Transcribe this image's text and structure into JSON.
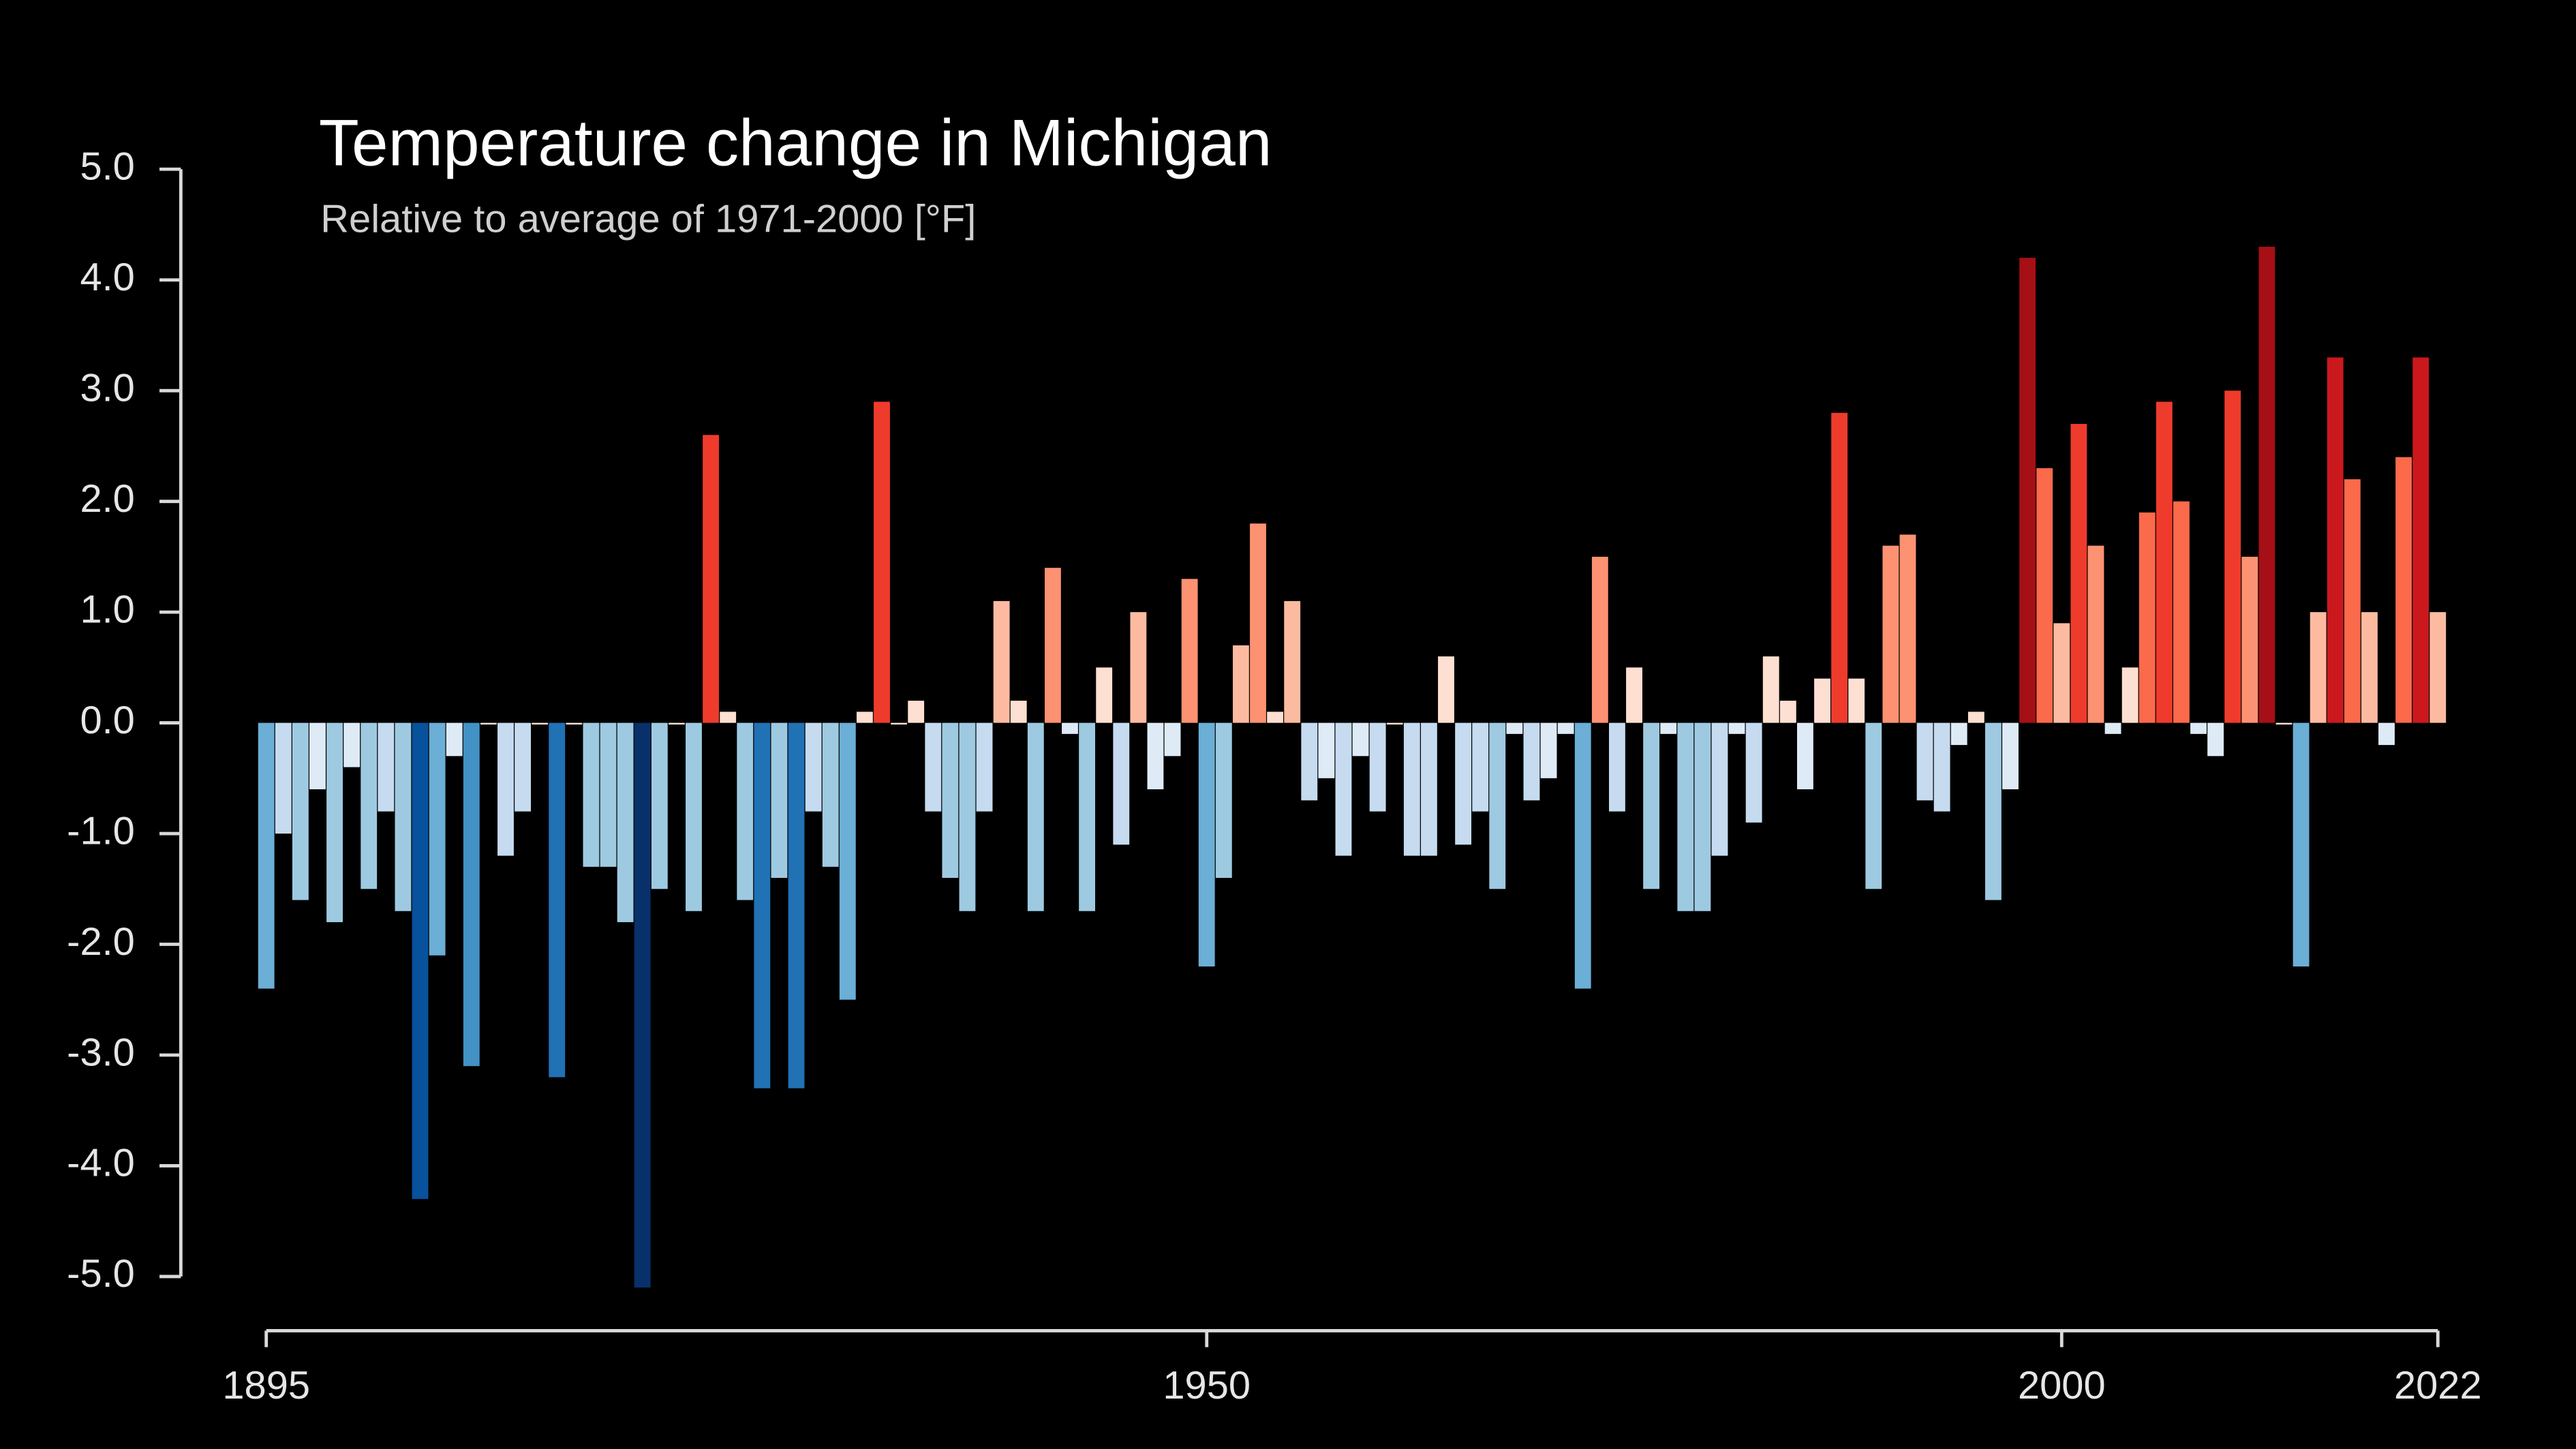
{
  "chart_data": {
    "type": "bar",
    "title": "Temperature change in Michigan",
    "subtitle": "Relative to average of 1971-2000  [°F]",
    "x": [
      1895,
      1896,
      1897,
      1898,
      1899,
      1900,
      1901,
      1902,
      1903,
      1904,
      1905,
      1906,
      1907,
      1908,
      1909,
      1910,
      1911,
      1912,
      1913,
      1914,
      1915,
      1916,
      1917,
      1918,
      1919,
      1920,
      1921,
      1922,
      1923,
      1924,
      1925,
      1926,
      1927,
      1928,
      1929,
      1930,
      1931,
      1932,
      1933,
      1934,
      1935,
      1936,
      1937,
      1938,
      1939,
      1940,
      1941,
      1942,
      1943,
      1944,
      1945,
      1946,
      1947,
      1948,
      1949,
      1950,
      1951,
      1952,
      1953,
      1954,
      1955,
      1956,
      1957,
      1958,
      1959,
      1960,
      1961,
      1962,
      1963,
      1964,
      1965,
      1966,
      1967,
      1968,
      1969,
      1970,
      1971,
      1972,
      1973,
      1974,
      1975,
      1976,
      1977,
      1978,
      1979,
      1980,
      1981,
      1982,
      1983,
      1984,
      1985,
      1986,
      1987,
      1988,
      1989,
      1990,
      1991,
      1992,
      1993,
      1994,
      1995,
      1996,
      1997,
      1998,
      1999,
      2000,
      2001,
      2002,
      2003,
      2004,
      2005,
      2006,
      2007,
      2008,
      2009,
      2010,
      2011,
      2012,
      2013,
      2014,
      2015,
      2016,
      2017,
      2018,
      2019,
      2020,
      2021,
      2022
    ],
    "values": [
      -2.4,
      -1.0,
      -1.6,
      -0.6,
      -1.8,
      -0.4,
      -1.5,
      -0.8,
      -1.7,
      -4.3,
      -2.1,
      -0.3,
      -3.1,
      0.0,
      -1.2,
      -0.8,
      0.0,
      -3.2,
      0.0,
      -1.3,
      -1.3,
      -1.8,
      -5.1,
      -1.5,
      0.0,
      -1.7,
      2.6,
      0.1,
      -1.6,
      -3.3,
      -1.4,
      -3.3,
      -0.8,
      -1.3,
      -2.5,
      0.1,
      2.9,
      0.0,
      0.2,
      -0.8,
      -1.4,
      -1.7,
      -0.8,
      1.1,
      0.2,
      -1.7,
      1.4,
      -0.1,
      -1.7,
      0.5,
      -1.1,
      1.0,
      -0.6,
      -0.3,
      1.3,
      -2.2,
      -1.4,
      0.7,
      1.8,
      0.1,
      1.1,
      -0.7,
      -0.5,
      -1.2,
      -0.3,
      -0.8,
      0.0,
      -1.2,
      -1.2,
      0.6,
      -1.1,
      -0.8,
      -1.5,
      -0.1,
      -0.7,
      -0.5,
      -0.1,
      -2.4,
      1.5,
      -0.8,
      0.5,
      -1.5,
      -0.1,
      -1.7,
      -1.7,
      -1.2,
      -0.1,
      -0.9,
      0.6,
      0.2,
      -0.6,
      0.4,
      2.8,
      0.4,
      -1.5,
      1.6,
      1.7,
      -0.7,
      -0.8,
      -0.2,
      0.1,
      -1.6,
      -0.6,
      4.2,
      2.3,
      0.9,
      2.7,
      1.6,
      -0.1,
      0.5,
      1.9,
      2.9,
      2.0,
      -0.1,
      -0.3,
      3.0,
      1.5,
      4.3,
      0.0,
      -2.2,
      1.0,
      3.3,
      2.2,
      1.0,
      -0.2,
      2.4,
      3.3,
      1.0
    ],
    "colormap": [
      "#08306b",
      "#08519c",
      "#2171b5",
      "#4292c6",
      "#6baed6",
      "#9ecae1",
      "#c6dbef",
      "#deebf7",
      "#fee0d2",
      "#fcbba1",
      "#fc9272",
      "#fb6a4a",
      "#ef3b2c",
      "#cb181d",
      "#a50f15",
      "#67000d"
    ],
    "xlim": [
      1895,
      2022
    ],
    "xticks": [
      1895,
      1950,
      2000,
      2022
    ],
    "ylim": [
      -5,
      5
    ],
    "yticks": [
      {
        "value": -5,
        "label": "-5.0"
      },
      {
        "value": -4,
        "label": "-4.0"
      },
      {
        "value": -3,
        "label": "-3.0"
      },
      {
        "value": -2,
        "label": "-2.0"
      },
      {
        "value": -1,
        "label": "-1.0"
      },
      {
        "value": 0,
        "label": "0.0"
      },
      {
        "value": 1,
        "label": "1.0"
      },
      {
        "value": 2,
        "label": "2.0"
      },
      {
        "value": 3,
        "label": "3.0"
      },
      {
        "value": 4,
        "label": "4.0"
      },
      {
        "value": 5,
        "label": "5.0"
      }
    ]
  }
}
